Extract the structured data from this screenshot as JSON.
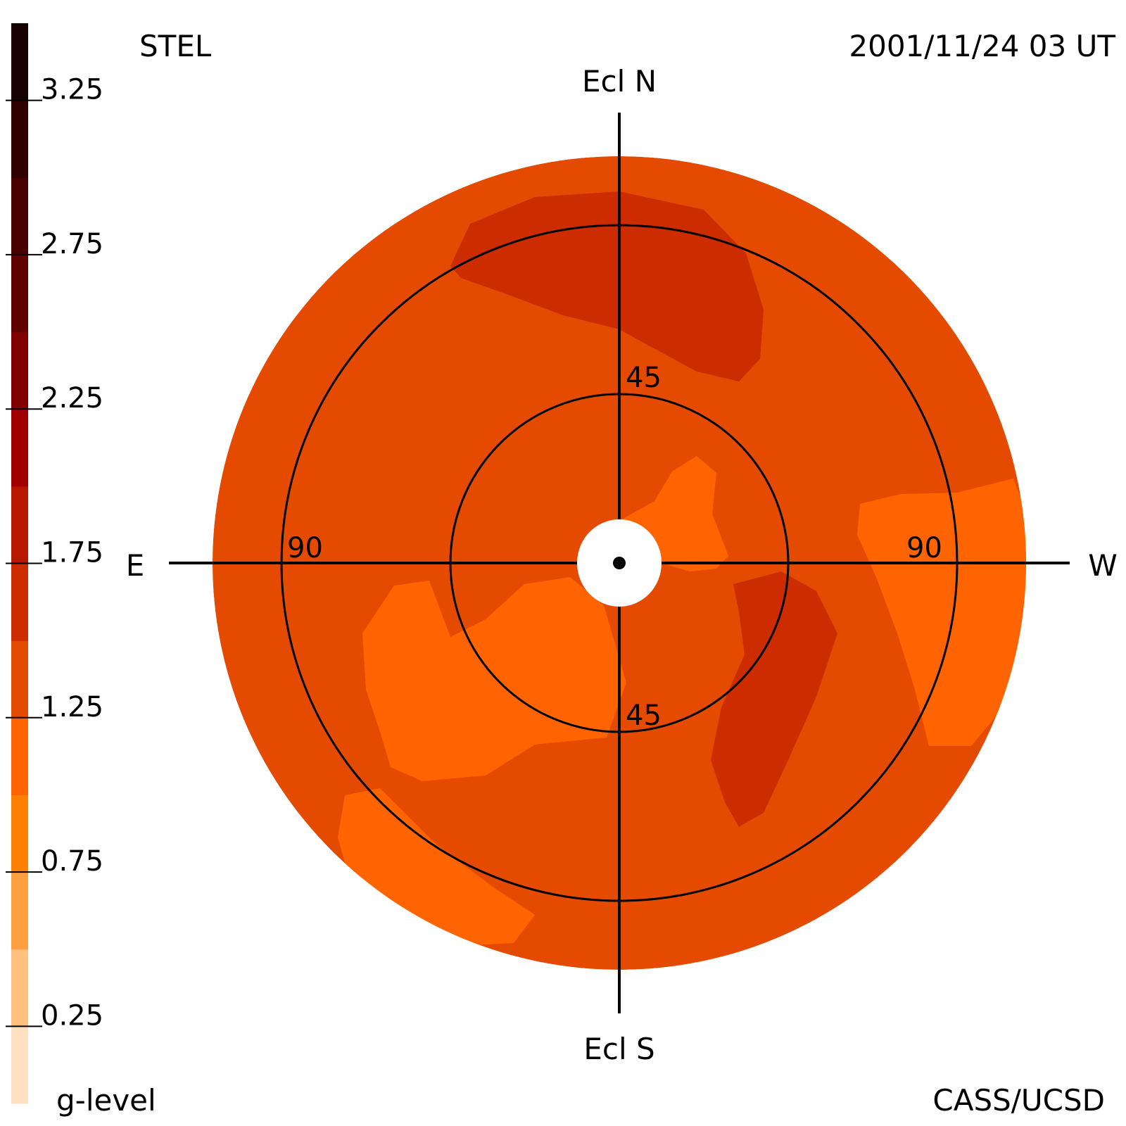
{
  "header": {
    "instrument": "STEL",
    "timestamp": "2001/11/24 03 UT",
    "credit": "CASS/UCSD"
  },
  "chart_data": {
    "type": "polar-sky-map",
    "directions": {
      "north": "Ecl N",
      "south": "Ecl S",
      "east": "E",
      "west": "W"
    },
    "rings": [
      {
        "elongation": 45,
        "labels": [
          "45",
          "45"
        ]
      },
      {
        "elongation": 90,
        "labels": [
          "90",
          "90"
        ]
      }
    ],
    "outer_elongation": 108,
    "colorbar": {
      "title": "g-level",
      "range": [
        0,
        3.5
      ],
      "tick_values": [
        0.25,
        0.75,
        1.25,
        1.75,
        2.25,
        2.75,
        3.25
      ],
      "tick_labels": [
        "0.25",
        "0.75",
        "1.25",
        "1.75",
        "2.25",
        "2.75",
        "3.25"
      ],
      "bins": [
        {
          "from": 0.0,
          "to": 0.25,
          "color": "#ffe0c0"
        },
        {
          "from": 0.25,
          "to": 0.5,
          "color": "#ffc080"
        },
        {
          "from": 0.5,
          "to": 0.75,
          "color": "#ffa040"
        },
        {
          "from": 0.75,
          "to": 1.0,
          "color": "#ff8000"
        },
        {
          "from": 1.0,
          "to": 1.25,
          "color": "#ff6400"
        },
        {
          "from": 1.25,
          "to": 1.5,
          "color": "#e44b00"
        },
        {
          "from": 1.5,
          "to": 1.75,
          "color": "#cc2c00"
        },
        {
          "from": 1.75,
          "to": 2.0,
          "color": "#b81800"
        },
        {
          "from": 2.0,
          "to": 2.25,
          "color": "#a00000"
        },
        {
          "from": 2.25,
          "to": 2.5,
          "color": "#800000"
        },
        {
          "from": 2.5,
          "to": 2.75,
          "color": "#600000"
        },
        {
          "from": 2.75,
          "to": 3.0,
          "color": "#480000"
        },
        {
          "from": 3.0,
          "to": 3.25,
          "color": "#300000"
        },
        {
          "from": 3.25,
          "to": 3.5,
          "color": "#180000"
        }
      ]
    },
    "regions": [
      {
        "level": 1.375,
        "color": "#e44b00",
        "area": "background sky disk"
      },
      {
        "level": 1.625,
        "color": "#cc2c00",
        "area": "north arc near 90 elongation"
      },
      {
        "level": 1.625,
        "color": "#cc2c00",
        "area": "west-southwest band"
      },
      {
        "level": 1.125,
        "color": "#ff6400",
        "area": "inner northeast lobe"
      },
      {
        "level": 1.125,
        "color": "#ff6400",
        "area": "southeast patch"
      },
      {
        "level": 1.125,
        "color": "#ff6400",
        "area": "west outer patch"
      },
      {
        "level": 1.125,
        "color": "#ff6400",
        "area": "south outer patch"
      }
    ]
  }
}
